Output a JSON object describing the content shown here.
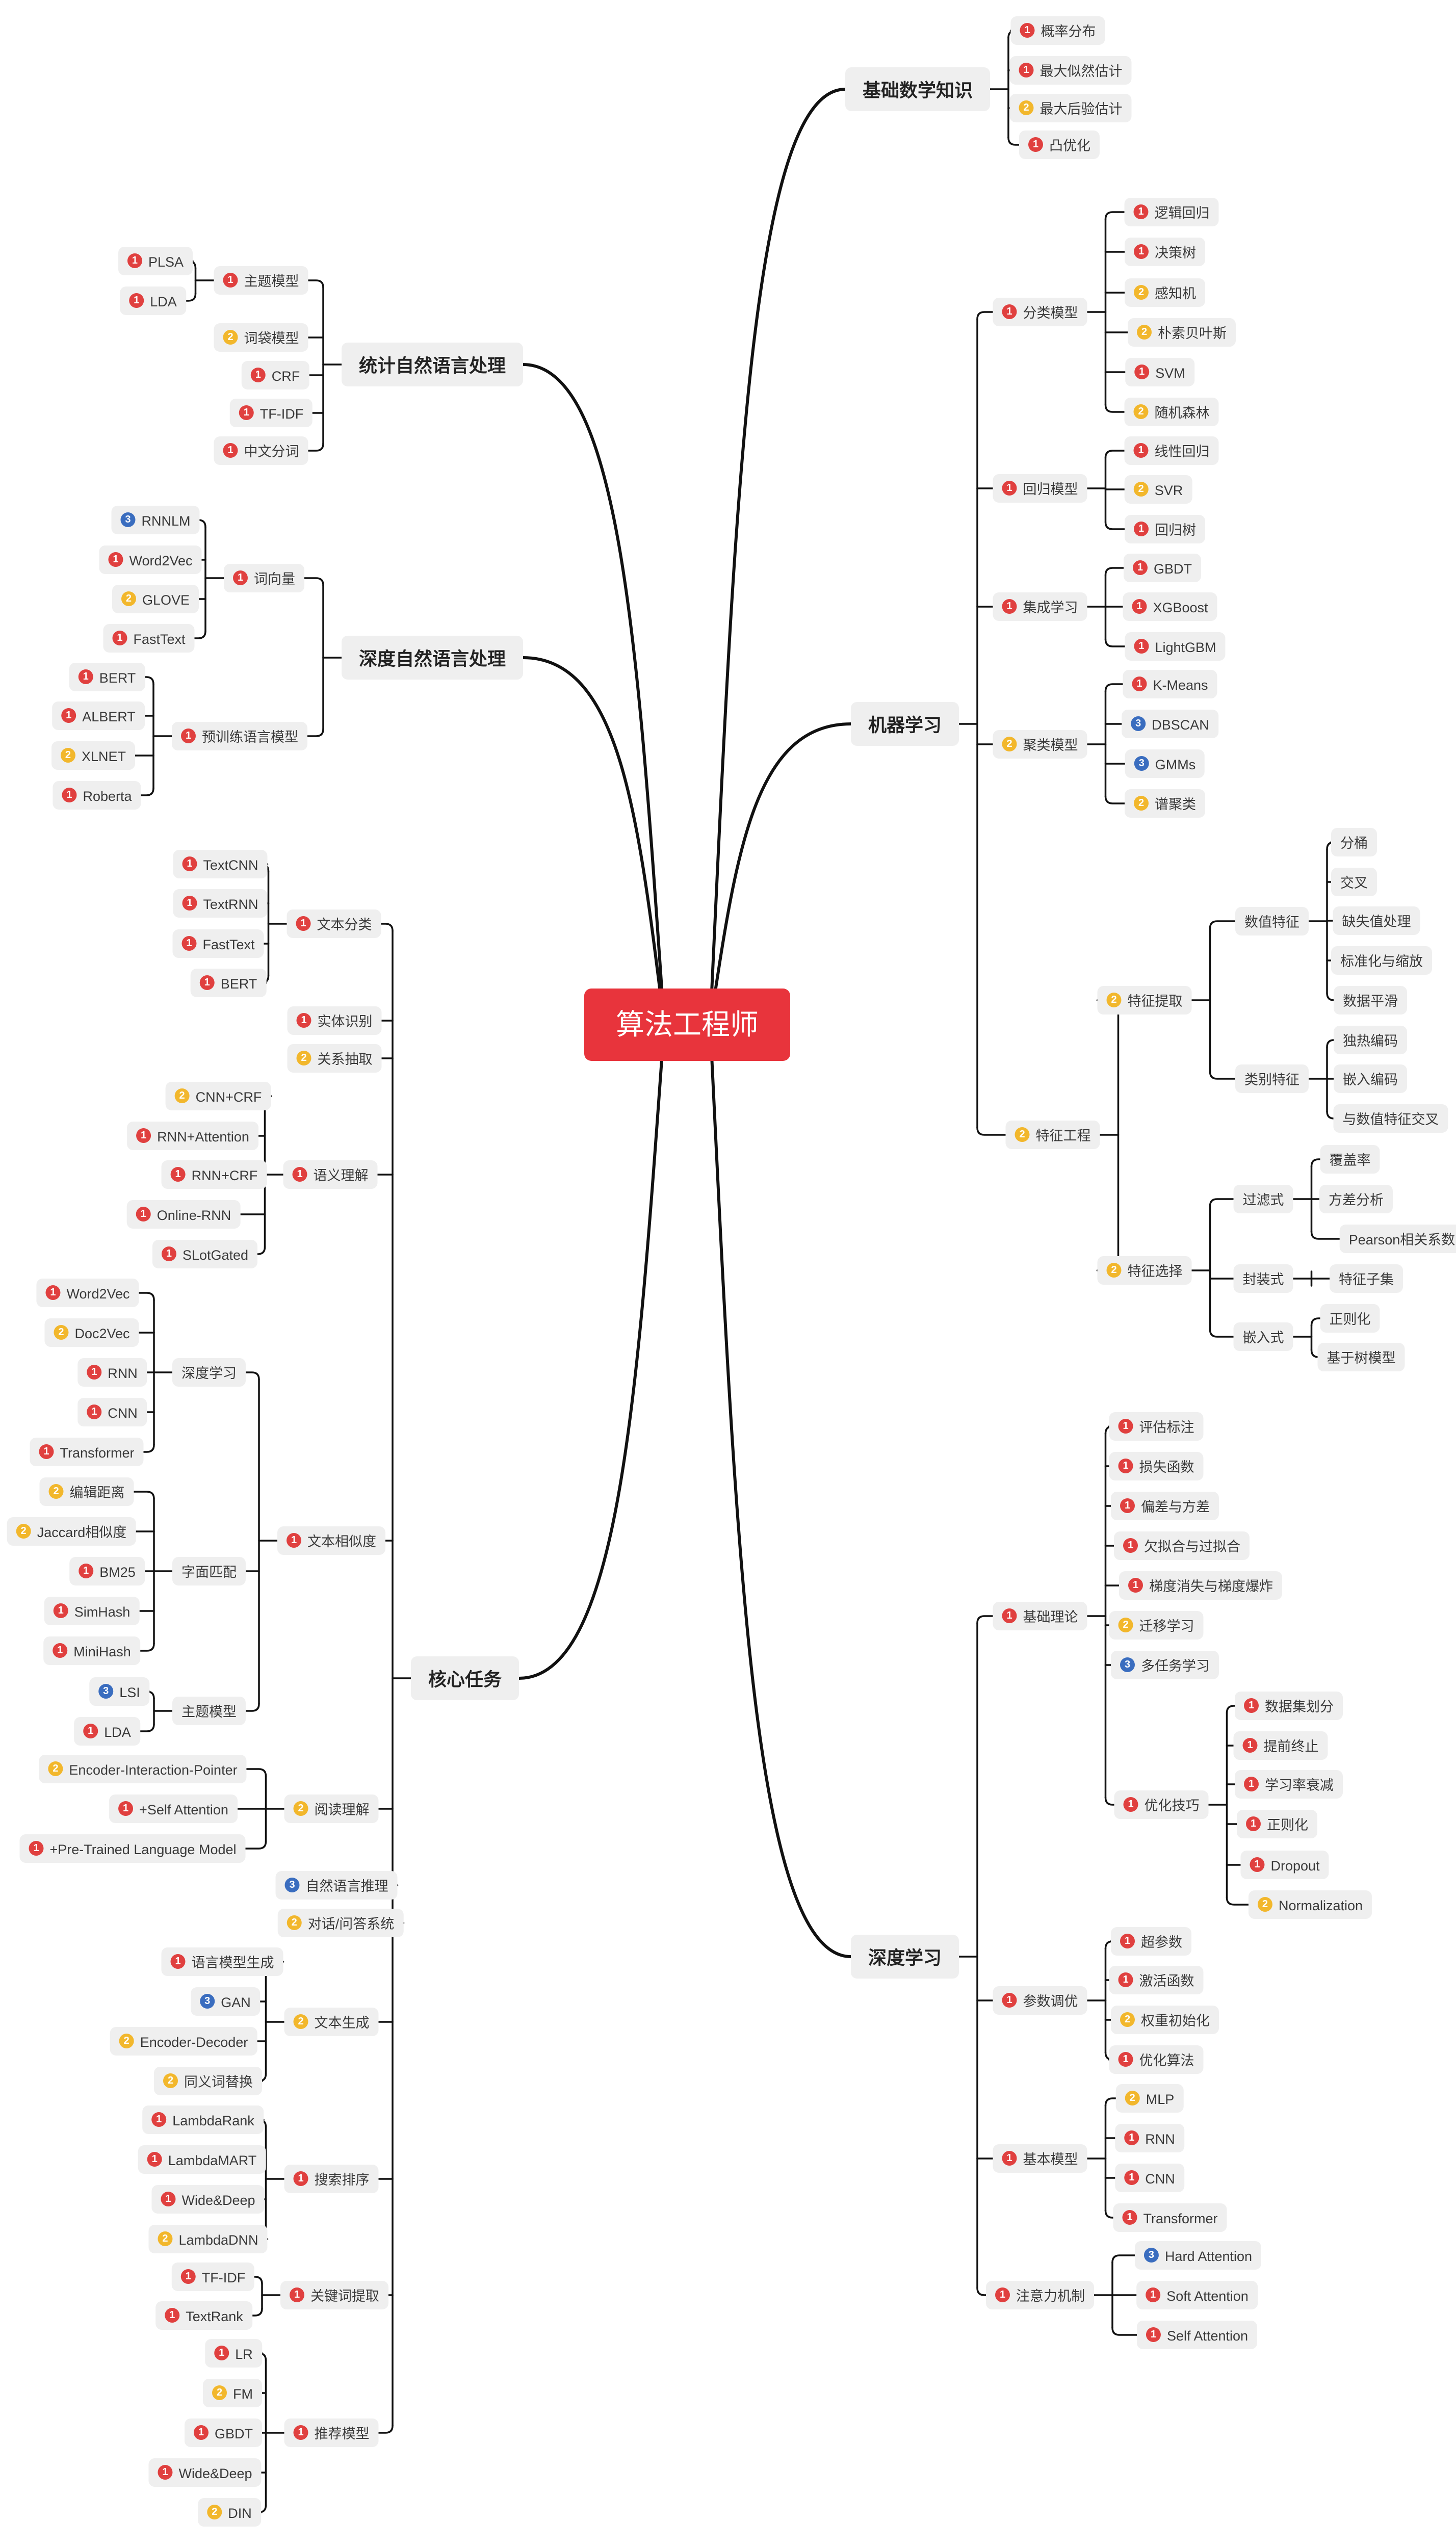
{
  "colors": {
    "root": "#e8343c",
    "priority_1": "#e0403f",
    "priority_2": "#f2b72c",
    "priority_3": "#3a6dbf"
  },
  "root": {
    "label": "算法工程师"
  },
  "branches": [
    {
      "label": "基础数学知识",
      "children": [
        {
          "label": "概率分布",
          "priority": 1
        },
        {
          "label": "最大似然估计",
          "priority": 1
        },
        {
          "label": "最大后验估计",
          "priority": 2
        },
        {
          "label": "凸优化",
          "priority": 1
        }
      ]
    },
    {
      "label": "机器学习",
      "children": [
        {
          "label": "分类模型",
          "priority": 1,
          "children": [
            {
              "label": "逻辑回归",
              "priority": 1
            },
            {
              "label": "决策树",
              "priority": 1
            },
            {
              "label": "感知机",
              "priority": 2
            },
            {
              "label": "朴素贝叶斯",
              "priority": 2
            },
            {
              "label": "SVM",
              "priority": 1
            },
            {
              "label": "随机森林",
              "priority": 2
            }
          ]
        },
        {
          "label": "回归模型",
          "priority": 1,
          "children": [
            {
              "label": "线性回归",
              "priority": 1
            },
            {
              "label": "SVR",
              "priority": 2
            },
            {
              "label": "回归树",
              "priority": 1
            }
          ]
        },
        {
          "label": "集成学习",
          "priority": 1,
          "children": [
            {
              "label": "GBDT",
              "priority": 1
            },
            {
              "label": "XGBoost",
              "priority": 1
            },
            {
              "label": "LightGBM",
              "priority": 1
            }
          ]
        },
        {
          "label": "聚类模型",
          "priority": 2,
          "children": [
            {
              "label": "K-Means",
              "priority": 1
            },
            {
              "label": "DBSCAN",
              "priority": 3
            },
            {
              "label": "GMMs",
              "priority": 3
            },
            {
              "label": "谱聚类",
              "priority": 2
            }
          ]
        },
        {
          "label": "特征工程",
          "priority": 2,
          "children": [
            {
              "label": "特征提取",
              "priority": 2,
              "children": [
                {
                  "label": "数值特征",
                  "children": [
                    {
                      "label": "分桶"
                    },
                    {
                      "label": "交叉"
                    },
                    {
                      "label": "缺失值处理"
                    },
                    {
                      "label": "标准化与缩放"
                    },
                    {
                      "label": "数据平滑"
                    }
                  ]
                },
                {
                  "label": "类别特征",
                  "children": [
                    {
                      "label": "独热编码"
                    },
                    {
                      "label": "嵌入编码"
                    },
                    {
                      "label": "与数值特征交叉"
                    }
                  ]
                }
              ]
            },
            {
              "label": "特征选择",
              "priority": 2,
              "children": [
                {
                  "label": "过滤式",
                  "children": [
                    {
                      "label": "覆盖率"
                    },
                    {
                      "label": "方差分析"
                    },
                    {
                      "label": "Pearson相关系数"
                    }
                  ]
                },
                {
                  "label": "封装式",
                  "children": [
                    {
                      "label": "特征子集"
                    }
                  ]
                },
                {
                  "label": "嵌入式",
                  "children": [
                    {
                      "label": "正则化"
                    },
                    {
                      "label": "基于树模型"
                    }
                  ]
                }
              ]
            }
          ]
        }
      ]
    },
    {
      "label": "深度学习",
      "children": [
        {
          "label": "基础理论",
          "priority": 1,
          "children": [
            {
              "label": "评估标注",
              "priority": 1
            },
            {
              "label": "损失函数",
              "priority": 1
            },
            {
              "label": "偏差与方差",
              "priority": 1
            },
            {
              "label": "欠拟合与过拟合",
              "priority": 1
            },
            {
              "label": "梯度消失与梯度爆炸",
              "priority": 1
            },
            {
              "label": "迁移学习",
              "priority": 2
            },
            {
              "label": "多任务学习",
              "priority": 3
            },
            {
              "label": "优化技巧",
              "priority": 1,
              "children": [
                {
                  "label": "数据集划分",
                  "priority": 1
                },
                {
                  "label": "提前终止",
                  "priority": 1
                },
                {
                  "label": "学习率衰减",
                  "priority": 1
                },
                {
                  "label": "正则化",
                  "priority": 1
                },
                {
                  "label": "Dropout",
                  "priority": 1
                },
                {
                  "label": "Normalization",
                  "priority": 2
                }
              ]
            }
          ]
        },
        {
          "label": "参数调优",
          "priority": 1,
          "children": [
            {
              "label": "超参数",
              "priority": 1
            },
            {
              "label": "激活函数",
              "priority": 1
            },
            {
              "label": "权重初始化",
              "priority": 2
            },
            {
              "label": "优化算法",
              "priority": 1
            }
          ]
        },
        {
          "label": "基本模型",
          "priority": 1,
          "children": [
            {
              "label": "MLP",
              "priority": 2
            },
            {
              "label": "RNN",
              "priority": 1
            },
            {
              "label": "CNN",
              "priority": 1
            },
            {
              "label": "Transformer",
              "priority": 1
            }
          ]
        },
        {
          "label": "注意力机制",
          "priority": 1,
          "children": [
            {
              "label": "Hard Attention",
              "priority": 3
            },
            {
              "label": "Soft Attention",
              "priority": 1
            },
            {
              "label": "Self Attention",
              "priority": 1
            }
          ]
        }
      ]
    },
    {
      "label": "统计自然语言处理",
      "children": [
        {
          "label": "主题模型",
          "priority": 1,
          "children": [
            {
              "label": "PLSA",
              "priority": 1
            },
            {
              "label": "LDA",
              "priority": 1
            }
          ]
        },
        {
          "label": "词袋模型",
          "priority": 2
        },
        {
          "label": "CRF",
          "priority": 1
        },
        {
          "label": "TF-IDF",
          "priority": 1
        },
        {
          "label": "中文分词",
          "priority": 1
        }
      ]
    },
    {
      "label": "深度自然语言处理",
      "children": [
        {
          "label": "词向量",
          "priority": 1,
          "children": [
            {
              "label": "RNNLM",
              "priority": 3
            },
            {
              "label": "Word2Vec",
              "priority": 1
            },
            {
              "label": "GLOVE",
              "priority": 2
            },
            {
              "label": "FastText",
              "priority": 1
            }
          ]
        },
        {
          "label": "预训练语言模型",
          "priority": 1,
          "children": [
            {
              "label": "BERT",
              "priority": 1
            },
            {
              "label": "ALBERT",
              "priority": 1
            },
            {
              "label": "XLNET",
              "priority": 2
            },
            {
              "label": "Roberta",
              "priority": 1
            }
          ]
        }
      ]
    },
    {
      "label": "核心任务",
      "children": [
        {
          "label": "文本分类",
          "priority": 1,
          "children": [
            {
              "label": "TextCNN",
              "priority": 1
            },
            {
              "label": "TextRNN",
              "priority": 1
            },
            {
              "label": "FastText",
              "priority": 1
            },
            {
              "label": "BERT",
              "priority": 1
            }
          ]
        },
        {
          "label": "实体识别",
          "priority": 1
        },
        {
          "label": "关系抽取",
          "priority": 2
        },
        {
          "label": "语义理解",
          "priority": 1,
          "children": [
            {
              "label": "CNN+CRF",
              "priority": 2
            },
            {
              "label": "RNN+Attention",
              "priority": 1
            },
            {
              "label": "RNN+CRF",
              "priority": 1
            },
            {
              "label": "Online-RNN",
              "priority": 1
            },
            {
              "label": "SLotGated",
              "priority": 1
            }
          ]
        },
        {
          "label": "文本相似度",
          "priority": 1,
          "children": [
            {
              "label": "深度学习",
              "children": [
                {
                  "label": "Word2Vec",
                  "priority": 1
                },
                {
                  "label": "Doc2Vec",
                  "priority": 2
                },
                {
                  "label": "RNN",
                  "priority": 1
                },
                {
                  "label": "CNN",
                  "priority": 1
                },
                {
                  "label": "Transformer",
                  "priority": 1
                }
              ]
            },
            {
              "label": "字面匹配",
              "children": [
                {
                  "label": "编辑距离",
                  "priority": 2
                },
                {
                  "label": "Jaccard相似度",
                  "priority": 2
                },
                {
                  "label": "BM25",
                  "priority": 1
                },
                {
                  "label": "SimHash",
                  "priority": 1
                },
                {
                  "label": "MiniHash",
                  "priority": 1
                }
              ]
            },
            {
              "label": "主题模型",
              "children": [
                {
                  "label": "LSI",
                  "priority": 3
                },
                {
                  "label": "LDA",
                  "priority": 1
                }
              ]
            }
          ]
        },
        {
          "label": "阅读理解",
          "priority": 2,
          "children": [
            {
              "label": "Encoder-Interaction-Pointer",
              "priority": 2
            },
            {
              "label": "+Self Attention",
              "priority": 1
            },
            {
              "label": "+Pre-Trained Language Model",
              "priority": 1
            }
          ]
        },
        {
          "label": "自然语言推理",
          "priority": 3
        },
        {
          "label": "对话/问答系统",
          "priority": 2
        },
        {
          "label": "文本生成",
          "priority": 2,
          "children": [
            {
              "label": "语言模型生成",
              "priority": 1
            },
            {
              "label": "GAN",
              "priority": 3
            },
            {
              "label": "Encoder-Decoder",
              "priority": 2
            },
            {
              "label": "同义词替换",
              "priority": 2
            }
          ]
        },
        {
          "label": "搜索排序",
          "priority": 1,
          "children": [
            {
              "label": "LambdaRank",
              "priority": 1
            },
            {
              "label": "LambdaMART",
              "priority": 1
            },
            {
              "label": "Wide&Deep",
              "priority": 1
            },
            {
              "label": "LambdaDNN",
              "priority": 2
            }
          ]
        },
        {
          "label": "关键词提取",
          "priority": 1,
          "children": [
            {
              "label": "TF-IDF",
              "priority": 1
            },
            {
              "label": "TextRank",
              "priority": 1
            }
          ]
        },
        {
          "label": "推荐模型",
          "priority": 1,
          "children": [
            {
              "label": "LR",
              "priority": 1
            },
            {
              "label": "FM",
              "priority": 2
            },
            {
              "label": "GBDT",
              "priority": 1
            },
            {
              "label": "Wide&Deep",
              "priority": 1
            },
            {
              "label": "DIN",
              "priority": 2
            }
          ]
        }
      ]
    }
  ]
}
